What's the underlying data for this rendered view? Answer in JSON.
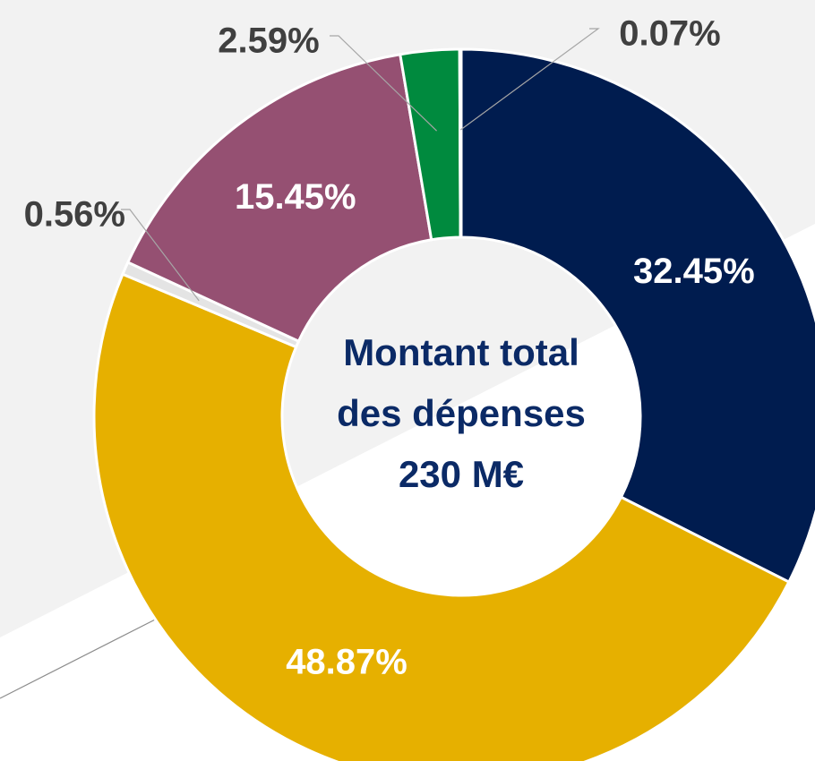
{
  "chart_data": {
    "type": "donut",
    "categories": [
      null,
      null,
      null,
      null,
      null,
      null
    ],
    "values": [
      32.45,
      48.87,
      0.56,
      15.45,
      2.59,
      0.07
    ],
    "value_labels": [
      "32.45%",
      "48.87%",
      "0.56%",
      "15.45%",
      "2.59%",
      "0.07%"
    ],
    "colors": [
      "#001c4f",
      "#e6b000",
      "#e4e4e4",
      "#955072",
      "#008a3e",
      "#9a9a9a"
    ],
    "center_text": [
      "Montant total",
      "des dépenses",
      "230 M€"
    ]
  }
}
